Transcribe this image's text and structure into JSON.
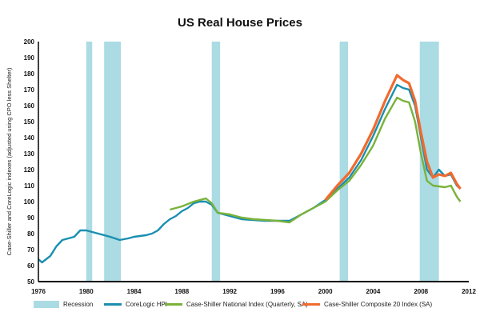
{
  "chart_data": {
    "type": "line",
    "title": "US Real House Prices",
    "xlabel": "",
    "ylabel": "Case-Shiller and CoreLogic indexes (adjusted using CPO less Shelter)",
    "xlim": [
      1976,
      2012
    ],
    "ylim": [
      50,
      200
    ],
    "xticks": [
      "1976",
      "1980",
      "1984",
      "1988",
      "1992",
      "1996",
      "2000",
      "2004",
      "2008",
      "2012"
    ],
    "yticks": [
      "50",
      "60",
      "70",
      "80",
      "90",
      "100",
      "110",
      "120",
      "130",
      "140",
      "150",
      "160",
      "170",
      "180",
      "190",
      "200"
    ],
    "grid": false,
    "legend_position": "bottom",
    "recession_label": "Recession",
    "recession_color": "#abdbe3",
    "recessions": [
      [
        1980.0,
        1980.5
      ],
      [
        1981.5,
        1982.9
      ],
      [
        1990.5,
        1991.2
      ],
      [
        2001.2,
        2001.9
      ],
      [
        2007.9,
        2009.5
      ]
    ],
    "series": [
      {
        "name": "CoreLogic HPI",
        "color": "#1a8fb0",
        "x": [
          1976,
          1976.3,
          1977,
          1977.5,
          1978,
          1979,
          1979.5,
          1980,
          1981,
          1982,
          1982.8,
          1983.5,
          1984,
          1985,
          1985.5,
          1986,
          1986.5,
          1987,
          1987.5,
          1988,
          1988.5,
          1989,
          1989.5,
          1990,
          1990.5,
          1991,
          1992,
          1993,
          1994,
          1995,
          1996,
          1997,
          1998,
          1999,
          2000,
          2001,
          2002,
          2003,
          2004,
          2005,
          2006,
          2006.5,
          2007,
          2007.5,
          2008,
          2008.5,
          2009,
          2009.5,
          2010,
          2010.5,
          2011,
          2011.3
        ],
        "y": [
          64,
          62,
          66,
          72,
          76,
          78,
          82,
          82,
          80,
          78,
          76,
          77,
          78,
          79,
          80,
          82,
          86,
          89,
          91,
          94,
          96,
          99,
          100,
          100,
          98,
          93,
          91,
          89,
          88.5,
          88,
          88,
          88,
          92,
          96,
          101,
          108,
          115,
          126,
          141,
          158,
          173,
          171,
          170,
          160,
          140,
          120,
          115,
          120,
          116,
          117,
          110,
          108
        ]
      },
      {
        "name": "Case-Shiller National Index (Quarterly, SA)",
        "color": "#7ab23a",
        "x": [
          1987,
          1988,
          1989,
          1990,
          1990.5,
          1991,
          1992,
          1993,
          1994,
          1995,
          1996,
          1997,
          1998,
          1999,
          2000,
          2001,
          2002,
          2003,
          2004,
          2005,
          2006,
          2006.5,
          2007,
          2007.5,
          2008,
          2008.5,
          2009,
          2010,
          2010.5,
          2011,
          2011.3
        ],
        "y": [
          95,
          97,
          100,
          102,
          99,
          93,
          92,
          90,
          89,
          88.5,
          88,
          87,
          92,
          96,
          100,
          107,
          113,
          123,
          135,
          152,
          165,
          163,
          162,
          150,
          130,
          113,
          110,
          109,
          110,
          103,
          100
        ]
      },
      {
        "name": "Case-Shiller Composite 20 Index (SA)",
        "color": "#f26a2e",
        "x": [
          2000,
          2001,
          2002,
          2003,
          2004,
          2005,
          2006,
          2006.5,
          2007,
          2007.5,
          2008,
          2008.5,
          2009,
          2009.5,
          2010,
          2010.5,
          2011,
          2011.3
        ],
        "y": [
          101,
          110,
          118,
          130,
          145,
          163,
          179,
          176,
          174,
          163,
          143,
          125,
          115,
          117,
          116,
          118,
          111,
          108
        ]
      }
    ]
  }
}
